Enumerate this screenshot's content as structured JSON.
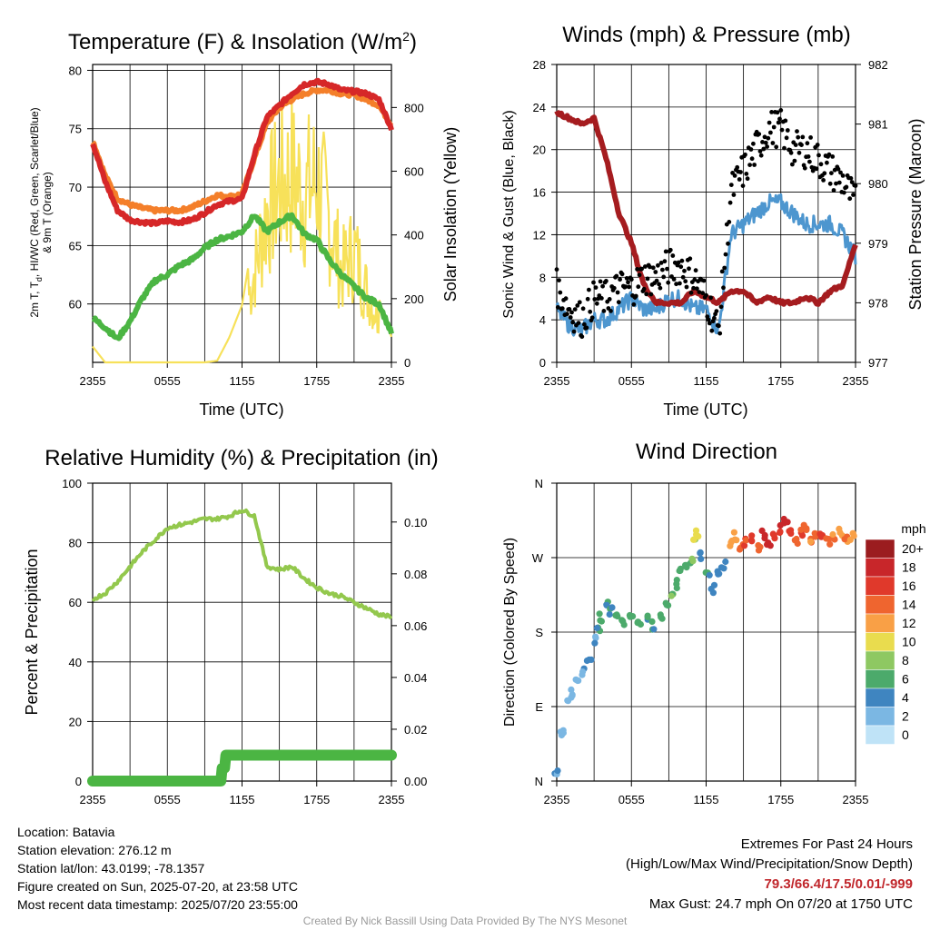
{
  "panels": {
    "temperature": {
      "title": "Temperature (F) & Insolation (W/m",
      "title_sup": "2",
      "title_end": ")",
      "ylabel_left_1": "2m T, T",
      "ylabel_left_sub": "d",
      "ylabel_left_2": ", HI/WC (Red, Green, Scarlet/Blue)",
      "ylabel_left_3": "& 9m T (Orange)",
      "ylabel_right": "Solar Insolation (Yellow)",
      "xlabel": "Time (UTC)"
    },
    "winds": {
      "title": "Winds (mph) & Pressure (mb)",
      "ylabel_left": "Sonic Wind & Gust (Blue, Black)",
      "ylabel_right": "Station Pressure (Maroon)",
      "xlabel": "Time (UTC)"
    },
    "humidity": {
      "title": "Relative Humidity (%) & Precipitation (in)",
      "ylabel_left": "Percent & Precipitation"
    },
    "direction": {
      "title": "Wind Direction",
      "ylabel_left": "Direction (Colored By Speed)",
      "legend_unit": "mph",
      "legend_labels": [
        "20+",
        "18",
        "16",
        "14",
        "12",
        "10",
        "8",
        "6",
        "4",
        "2",
        "0"
      ],
      "legend_colors": [
        "#9b1c1f",
        "#c8262a",
        "#e0392b",
        "#ef652f",
        "#f9a046",
        "#e9dc4e",
        "#8ec862",
        "#4caa6b",
        "#3f85c0",
        "#7bb7e3",
        "#bfe3f7"
      ]
    }
  },
  "x_ticks": [
    "2355",
    "0555",
    "1155",
    "1755",
    "2355"
  ],
  "info": {
    "location": "Location: Batavia",
    "elevation": "Station elevation: 276.12 m",
    "latlon": "Station lat/lon: 43.0199; -78.1357",
    "created": "Figure created on Sun, 2025-07-20, at 23:58 UTC",
    "recent": "Most recent data timestamp: 2025/07/20 23:55:00"
  },
  "extremes": {
    "heading": "Extremes For Past 24 Hours",
    "subheading": "(High/Low/Max Wind/Precipitation/Snow Depth)",
    "values": "79.3/66.4/17.5/0.01/-999",
    "max_gust": "Max Gust: 24.7 mph On 07/20 at 1750 UTC"
  },
  "credit": "Created By Nick Bassill Using Data Provided By The NYS Mesonet",
  "chart_data": [
    {
      "type": "line",
      "title": "Temperature (F) & Insolation (W/m2)",
      "xlabel": "Time (UTC)",
      "ylabel": "2m T, Td, HI/WC (Red, Green, Scarlet/Blue) & 9m T (Orange)",
      "ylabel_right": "Solar Insolation (Yellow)",
      "x_ticks": [
        "2355",
        "0555",
        "1155",
        "1755",
        "2355"
      ],
      "ylim": [
        55,
        80.5
      ],
      "ylim_right": [
        0,
        935
      ],
      "y_ticks": [
        60,
        65,
        70,
        75,
        80
      ],
      "y_ticks_right": [
        0,
        200,
        400,
        600,
        800
      ],
      "x_hours": [
        0,
        1,
        2,
        3,
        4,
        5,
        6,
        7,
        8,
        9,
        10,
        11,
        12,
        13,
        14,
        15,
        16,
        17,
        18,
        19,
        20,
        21,
        22,
        23,
        24
      ],
      "series": [
        {
          "color": "#d62728",
          "axis": "left",
          "values": [
            73.8,
            70.5,
            68.0,
            67.2,
            67.0,
            66.9,
            67.1,
            67.0,
            67.2,
            67.8,
            68.5,
            68.8,
            69.0,
            72.8,
            76.0,
            77.0,
            78.0,
            78.8,
            79.0,
            78.8,
            78.3,
            78.2,
            78.0,
            77.5,
            75.0
          ]
        },
        {
          "color": "#f47f2a",
          "axis": "left",
          "values": [
            74.0,
            71.0,
            69.0,
            68.5,
            68.2,
            68.0,
            68.0,
            68.0,
            68.3,
            68.8,
            69.3,
            69.2,
            69.4,
            72.5,
            75.5,
            76.8,
            77.5,
            78.0,
            78.3,
            78.3,
            78.0,
            77.9,
            77.5,
            77.0,
            75.3
          ]
        },
        {
          "color": "#4bb543",
          "axis": "left",
          "values": [
            58.8,
            58.0,
            57.0,
            58.5,
            60.5,
            62.0,
            62.5,
            63.3,
            63.8,
            64.8,
            65.5,
            65.8,
            66.2,
            67.6,
            66.2,
            67.0,
            67.6,
            66.0,
            65.5,
            63.8,
            62.5,
            61.5,
            60.5,
            60.0,
            57.5
          ]
        },
        {
          "color": "#f7e15a",
          "axis": "right",
          "values": [
            50,
            0,
            0,
            0,
            0,
            0,
            0,
            0,
            0,
            0,
            5,
            80,
            180,
            420,
            700,
            820,
            860,
            780,
            840,
            660,
            420,
            520,
            330,
            200,
            80
          ]
        }
      ]
    },
    {
      "type": "line",
      "title": "Winds (mph) & Pressure (mb)",
      "xlabel": "Time (UTC)",
      "ylabel": "Sonic Wind & Gust (Blue, Black)",
      "ylabel_right": "Station Pressure (Maroon)",
      "x_ticks": [
        "2355",
        "0555",
        "1155",
        "1755",
        "2355"
      ],
      "ylim": [
        0,
        28
      ],
      "ylim_right": [
        977,
        982
      ],
      "y_ticks": [
        0,
        4,
        8,
        12,
        16,
        20,
        24,
        28
      ],
      "y_ticks_right": [
        977,
        978,
        979,
        980,
        981,
        982
      ],
      "x_hours": [
        0,
        1,
        2,
        3,
        4,
        5,
        6,
        7,
        8,
        9,
        10,
        11,
        12,
        13,
        14,
        15,
        16,
        17,
        18,
        19,
        20,
        21,
        22,
        23,
        24
      ],
      "series": [
        {
          "name": "",
          "color": "#4d96cf",
          "axis": "left",
          "values": [
            5,
            3.5,
            3,
            4,
            4,
            5,
            6,
            5,
            5,
            6,
            6,
            5,
            5,
            3,
            12,
            13,
            14,
            15,
            15,
            14,
            13,
            13,
            13,
            12,
            10
          ]
        },
        {
          "name": "",
          "color": "#000000",
          "axis": "left",
          "style": "points",
          "values": [
            7,
            5,
            4,
            6,
            6,
            7,
            7,
            8,
            8,
            9,
            9,
            8,
            6,
            3,
            16,
            18,
            20,
            22,
            22,
            20,
            20,
            19,
            18,
            17,
            15
          ]
        },
        {
          "name": "",
          "color": "#a51c1f",
          "axis": "right",
          "values": [
            981.2,
            981.1,
            981.0,
            981.1,
            980.4,
            979.5,
            979.0,
            978.3,
            978.0,
            978.0,
            978.0,
            978.2,
            978.1,
            978.0,
            978.2,
            978.2,
            978.0,
            978.1,
            978.0,
            978.0,
            978.1,
            978.0,
            978.2,
            978.3,
            979.0
          ]
        }
      ]
    },
    {
      "type": "line",
      "title": "Relative Humidity (%) & Precipitation (in)",
      "ylabel": "Percent & Precipitation",
      "x_ticks": [
        "2355",
        "0555",
        "1155",
        "1755",
        "2355"
      ],
      "ylim": [
        0,
        100
      ],
      "ylim_right": [
        0,
        0.115
      ],
      "y_ticks": [
        0,
        20,
        40,
        60,
        80,
        100
      ],
      "y_ticks_right": [
        0.0,
        0.02,
        0.04,
        0.06,
        0.08,
        0.1
      ],
      "x_hours": [
        0,
        1,
        2,
        3,
        4,
        5,
        6,
        7,
        8,
        9,
        10,
        11,
        12,
        13,
        14,
        15,
        16,
        17,
        18,
        19,
        20,
        21,
        22,
        23,
        24
      ],
      "series": [
        {
          "color": "#93c84d",
          "axis": "left",
          "values": [
            61,
            63,
            67,
            72,
            77,
            81,
            85,
            86,
            87,
            88,
            88,
            89,
            91,
            89,
            72,
            71,
            72,
            68,
            65,
            63,
            62,
            60,
            58,
            56,
            55
          ]
        },
        {
          "color": "#4bb543",
          "axis": "right",
          "values": [
            0,
            0,
            0,
            0,
            0,
            0,
            0,
            0,
            0,
            0,
            0,
            0.01,
            0.01,
            0.01,
            0.01,
            0.01,
            0.01,
            0.01,
            0.01,
            0.01,
            0.01,
            0.01,
            0.01,
            0.01,
            0.01
          ]
        }
      ]
    },
    {
      "type": "scatter",
      "title": "Wind Direction",
      "ylabel": "Direction (Colored By Speed)",
      "x_ticks": [
        "2355",
        "0555",
        "1155",
        "1755",
        "2355"
      ],
      "y_ticks": [
        "N",
        "E",
        "S",
        "W",
        "N"
      ],
      "ylim": [
        0,
        360
      ],
      "colorbar_unit": "mph",
      "points": [
        {
          "h": 0.0,
          "dir": 12,
          "spd": 3
        },
        {
          "h": 0.3,
          "dir": 55,
          "spd": 3
        },
        {
          "h": 0.5,
          "dir": 58,
          "spd": 2
        },
        {
          "h": 1.0,
          "dir": 98,
          "spd": 2
        },
        {
          "h": 1.3,
          "dir": 108,
          "spd": 2
        },
        {
          "h": 1.7,
          "dir": 118,
          "spd": 2
        },
        {
          "h": 2.2,
          "dir": 132,
          "spd": 3
        },
        {
          "h": 2.6,
          "dir": 150,
          "spd": 4
        },
        {
          "h": 3.0,
          "dir": 170,
          "spd": 3
        },
        {
          "h": 3.3,
          "dir": 186,
          "spd": 5
        },
        {
          "h": 3.6,
          "dir": 198,
          "spd": 6
        },
        {
          "h": 4.0,
          "dir": 212,
          "spd": 5
        },
        {
          "h": 4.4,
          "dir": 205,
          "spd": 5
        },
        {
          "h": 4.8,
          "dir": 198,
          "spd": 6
        },
        {
          "h": 5.4,
          "dir": 192,
          "spd": 6
        },
        {
          "h": 6.0,
          "dir": 198,
          "spd": 6
        },
        {
          "h": 6.6,
          "dir": 193,
          "spd": 6
        },
        {
          "h": 7.2,
          "dir": 198,
          "spd": 5
        },
        {
          "h": 7.8,
          "dir": 188,
          "spd": 5
        },
        {
          "h": 8.4,
          "dir": 198,
          "spd": 6
        },
        {
          "h": 8.8,
          "dir": 212,
          "spd": 6
        },
        {
          "h": 9.2,
          "dir": 228,
          "spd": 7
        },
        {
          "h": 9.6,
          "dir": 238,
          "spd": 6
        },
        {
          "h": 10.0,
          "dir": 252,
          "spd": 6
        },
        {
          "h": 10.4,
          "dir": 262,
          "spd": 6
        },
        {
          "h": 10.8,
          "dir": 268,
          "spd": 7
        },
        {
          "h": 11.0,
          "dir": 290,
          "spd": 9
        },
        {
          "h": 11.2,
          "dir": 300,
          "spd": 10
        },
        {
          "h": 11.6,
          "dir": 272,
          "spd": 4
        },
        {
          "h": 12.1,
          "dir": 252,
          "spd": 5
        },
        {
          "h": 12.5,
          "dir": 232,
          "spd": 4
        },
        {
          "h": 13.0,
          "dir": 250,
          "spd": 4
        },
        {
          "h": 13.4,
          "dir": 262,
          "spd": 4
        },
        {
          "h": 14.0,
          "dir": 288,
          "spd": 11
        },
        {
          "h": 14.4,
          "dir": 296,
          "spd": 12
        },
        {
          "h": 14.8,
          "dir": 282,
          "spd": 14
        },
        {
          "h": 15.2,
          "dir": 288,
          "spd": 15
        },
        {
          "h": 15.8,
          "dir": 292,
          "spd": 16
        },
        {
          "h": 16.2,
          "dir": 282,
          "spd": 14
        },
        {
          "h": 16.6,
          "dir": 298,
          "spd": 18
        },
        {
          "h": 17.0,
          "dir": 288,
          "spd": 17
        },
        {
          "h": 17.5,
          "dir": 295,
          "spd": 16
        },
        {
          "h": 18.0,
          "dir": 305,
          "spd": 17
        },
        {
          "h": 18.4,
          "dir": 315,
          "spd": 18
        },
        {
          "h": 18.8,
          "dir": 300,
          "spd": 16
        },
        {
          "h": 19.2,
          "dir": 288,
          "spd": 14
        },
        {
          "h": 19.6,
          "dir": 300,
          "spd": 15
        },
        {
          "h": 20.0,
          "dir": 308,
          "spd": 14
        },
        {
          "h": 20.4,
          "dir": 292,
          "spd": 13
        },
        {
          "h": 20.8,
          "dir": 298,
          "spd": 14
        },
        {
          "h": 21.3,
          "dir": 295,
          "spd": 15
        },
        {
          "h": 21.8,
          "dir": 290,
          "spd": 14
        },
        {
          "h": 22.3,
          "dir": 296,
          "spd": 13
        },
        {
          "h": 22.8,
          "dir": 300,
          "spd": 12
        },
        {
          "h": 23.2,
          "dir": 292,
          "spd": 13
        },
        {
          "h": 23.7,
          "dir": 296,
          "spd": 12
        }
      ]
    }
  ]
}
